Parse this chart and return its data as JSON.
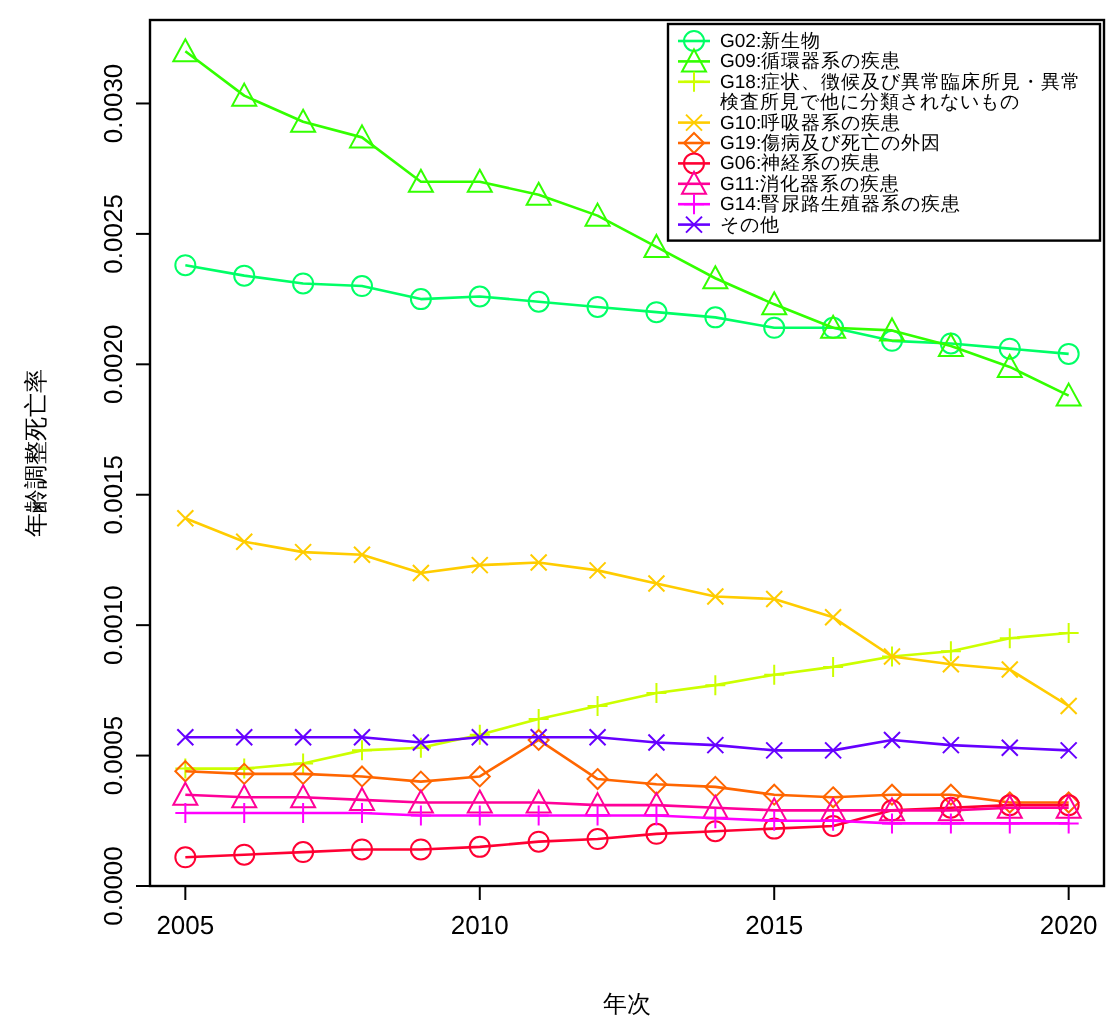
{
  "chart_data": {
    "type": "line",
    "xlabel": "年次",
    "ylabel": "年齢調整死亡率",
    "x": [
      2005,
      2006,
      2007,
      2008,
      2009,
      2010,
      2011,
      2012,
      2013,
      2014,
      2015,
      2016,
      2017,
      2018,
      2019,
      2020
    ],
    "xlim": [
      2004.4,
      2020.6
    ],
    "xticks": [
      2005,
      2010,
      2015,
      2020
    ],
    "ylim": [
      0,
      0.00332
    ],
    "yticks": [
      {
        "value": 0,
        "label": "0.0000"
      },
      {
        "value": 0.0005,
        "label": "0.0005"
      },
      {
        "value": 0.001,
        "label": "0.0010"
      },
      {
        "value": 0.0015,
        "label": "0.0015"
      },
      {
        "value": 0.002,
        "label": "0.0020"
      },
      {
        "value": 0.0025,
        "label": "0.0025"
      },
      {
        "value": 0.003,
        "label": "0.0030"
      }
    ],
    "legend": "top right",
    "grid": false,
    "series": [
      {
        "name": "G02:新生物",
        "color": "#00ff66",
        "marker": "circle",
        "values": [
          0.00238,
          0.00234,
          0.00231,
          0.0023,
          0.00225,
          0.00226,
          0.00224,
          0.00222,
          0.0022,
          0.00218,
          0.00214,
          0.00214,
          0.00209,
          0.00208,
          0.00206,
          0.00204
        ]
      },
      {
        "name": "G09:循環器系の疾患",
        "color": "#33ff00",
        "marker": "triangle",
        "values": [
          0.0032,
          0.00303,
          0.00293,
          0.00287,
          0.0027,
          0.0027,
          0.00265,
          0.00257,
          0.00245,
          0.00233,
          0.00223,
          0.00214,
          0.00213,
          0.00207,
          0.00199,
          0.00188
        ]
      },
      {
        "name": "G18:症状、徴候及び異常臨床所見・異常検査所見で他に分類されないもの",
        "color": "#ccff00",
        "marker": "plus",
        "values": [
          0.00045,
          0.00045,
          0.00047,
          0.00052,
          0.00053,
          0.00058,
          0.00064,
          0.00069,
          0.00074,
          0.00077,
          0.00081,
          0.00084,
          0.00088,
          0.0009,
          0.00095,
          0.00097
        ]
      },
      {
        "name": "G10:呼吸器系の疾患",
        "color": "#ffcc00",
        "marker": "cross",
        "values": [
          0.00141,
          0.00132,
          0.00128,
          0.00127,
          0.0012,
          0.00123,
          0.00124,
          0.00121,
          0.00116,
          0.00111,
          0.0011,
          0.00103,
          0.00088,
          0.00085,
          0.00083,
          0.00069
        ]
      },
      {
        "name": "G19:傷病及び死亡の外因",
        "color": "#ff6600",
        "marker": "diamond",
        "values": [
          0.00044,
          0.00043,
          0.00043,
          0.00042,
          0.0004,
          0.00042,
          0.00056,
          0.00041,
          0.00039,
          0.00038,
          0.00035,
          0.00034,
          0.00035,
          0.00035,
          0.00032,
          0.00032
        ]
      },
      {
        "name": "G06:神経系の疾患",
        "color": "#ff0033",
        "marker": "circle",
        "values": [
          0.00011,
          0.00012,
          0.00013,
          0.00014,
          0.00014,
          0.00015,
          0.00017,
          0.00018,
          0.0002,
          0.00021,
          0.00022,
          0.00023,
          0.00029,
          0.0003,
          0.00031,
          0.00031
        ]
      },
      {
        "name": "G11:消化器系の疾患",
        "color": "#ff0099",
        "marker": "triangle",
        "values": [
          0.00035,
          0.00034,
          0.00034,
          0.00033,
          0.00032,
          0.00032,
          0.00032,
          0.00031,
          0.00031,
          0.0003,
          0.00029,
          0.00029,
          0.00029,
          0.00029,
          0.0003,
          0.0003
        ]
      },
      {
        "name": "G14:腎尿路生殖器系の疾患",
        "color": "#ff00ff",
        "marker": "plus",
        "values": [
          0.00028,
          0.00028,
          0.00028,
          0.00028,
          0.00027,
          0.00027,
          0.00027,
          0.00027,
          0.00027,
          0.00026,
          0.00025,
          0.00025,
          0.00024,
          0.00024,
          0.00024,
          0.00024
        ]
      },
      {
        "name": "その他",
        "color": "#6600ff",
        "marker": "cross",
        "values": [
          0.00057,
          0.00057,
          0.00057,
          0.00057,
          0.00055,
          0.00057,
          0.00057,
          0.00057,
          0.00055,
          0.00054,
          0.00052,
          0.00052,
          0.00056,
          0.00054,
          0.00053,
          0.00052
        ]
      }
    ]
  }
}
